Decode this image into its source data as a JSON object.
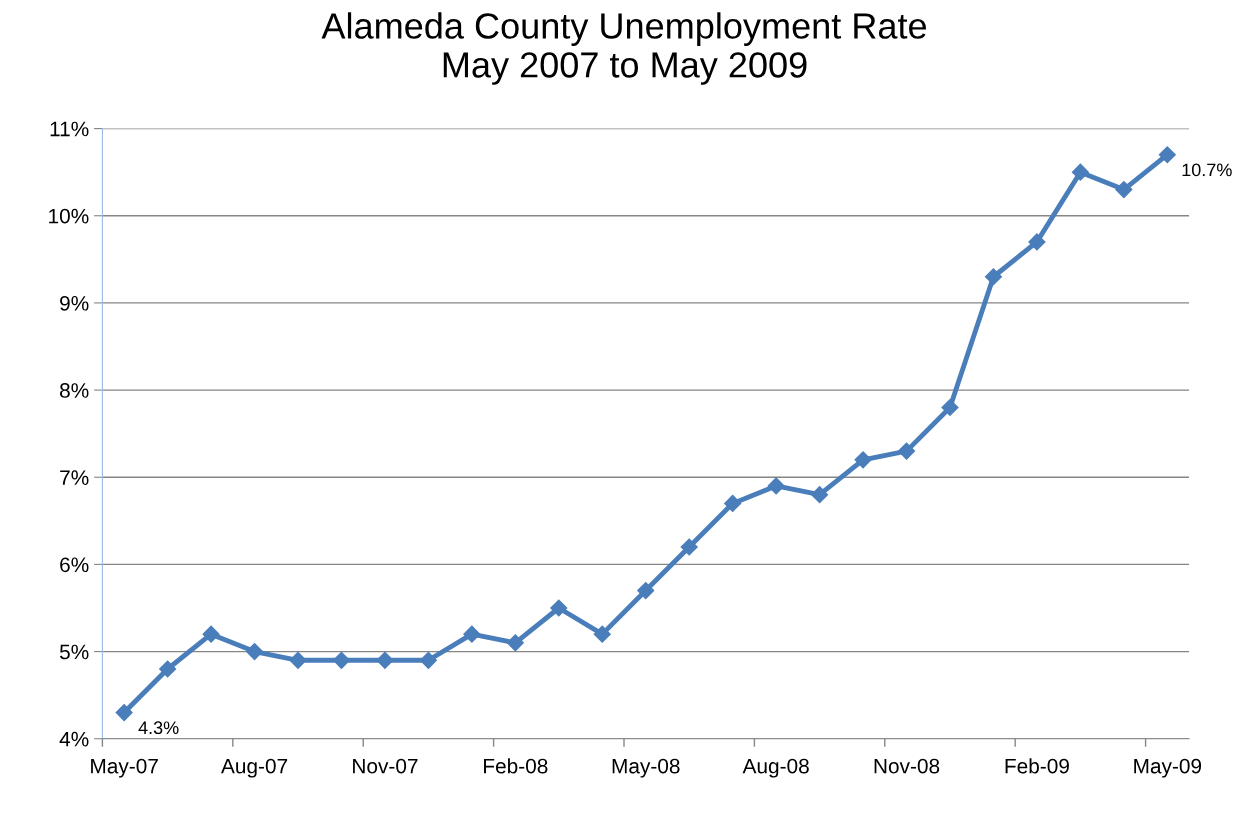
{
  "chart_data": {
    "type": "line",
    "title": "Alameda County Unemployment Rate\nMay 2007 to May 2009",
    "categories": [
      "May-07",
      null,
      null,
      "Aug-07",
      null,
      null,
      "Nov-07",
      null,
      null,
      "Feb-08",
      null,
      null,
      "May-08",
      null,
      null,
      "Aug-08",
      null,
      null,
      "Nov-08",
      null,
      null,
      "Feb-09",
      null,
      null,
      "May-09"
    ],
    "series": [
      {
        "color": "#4a7ebb",
        "values": [
          4.3,
          4.8,
          5.2,
          5.0,
          4.9,
          4.9,
          4.9,
          4.9,
          5.2,
          5.1,
          5.5,
          5.2,
          5.7,
          6.2,
          6.7,
          6.9,
          6.8,
          7.2,
          7.3,
          7.8,
          9.3,
          9.7,
          10.5,
          10.3,
          10.7
        ],
        "value_labels": [
          "4.3%",
          null,
          null,
          null,
          null,
          null,
          null,
          null,
          null,
          null,
          null,
          null,
          null,
          null,
          null,
          null,
          null,
          null,
          null,
          null,
          null,
          null,
          null,
          null,
          "10.7%"
        ]
      }
    ],
    "ylim": [
      4,
      11
    ],
    "yticks": [
      {
        "value": 4,
        "label": "4%"
      },
      {
        "value": 5,
        "label": "5%"
      },
      {
        "value": 6,
        "label": "6%"
      },
      {
        "value": 7,
        "label": "7%"
      },
      {
        "value": 8,
        "label": "8%"
      },
      {
        "value": 9,
        "label": "9%"
      },
      {
        "value": 10,
        "label": "10%"
      },
      {
        "value": 11,
        "label": "11%"
      }
    ],
    "grid": "y",
    "legend": false,
    "marker": "diamond",
    "line_style": "solid"
  }
}
